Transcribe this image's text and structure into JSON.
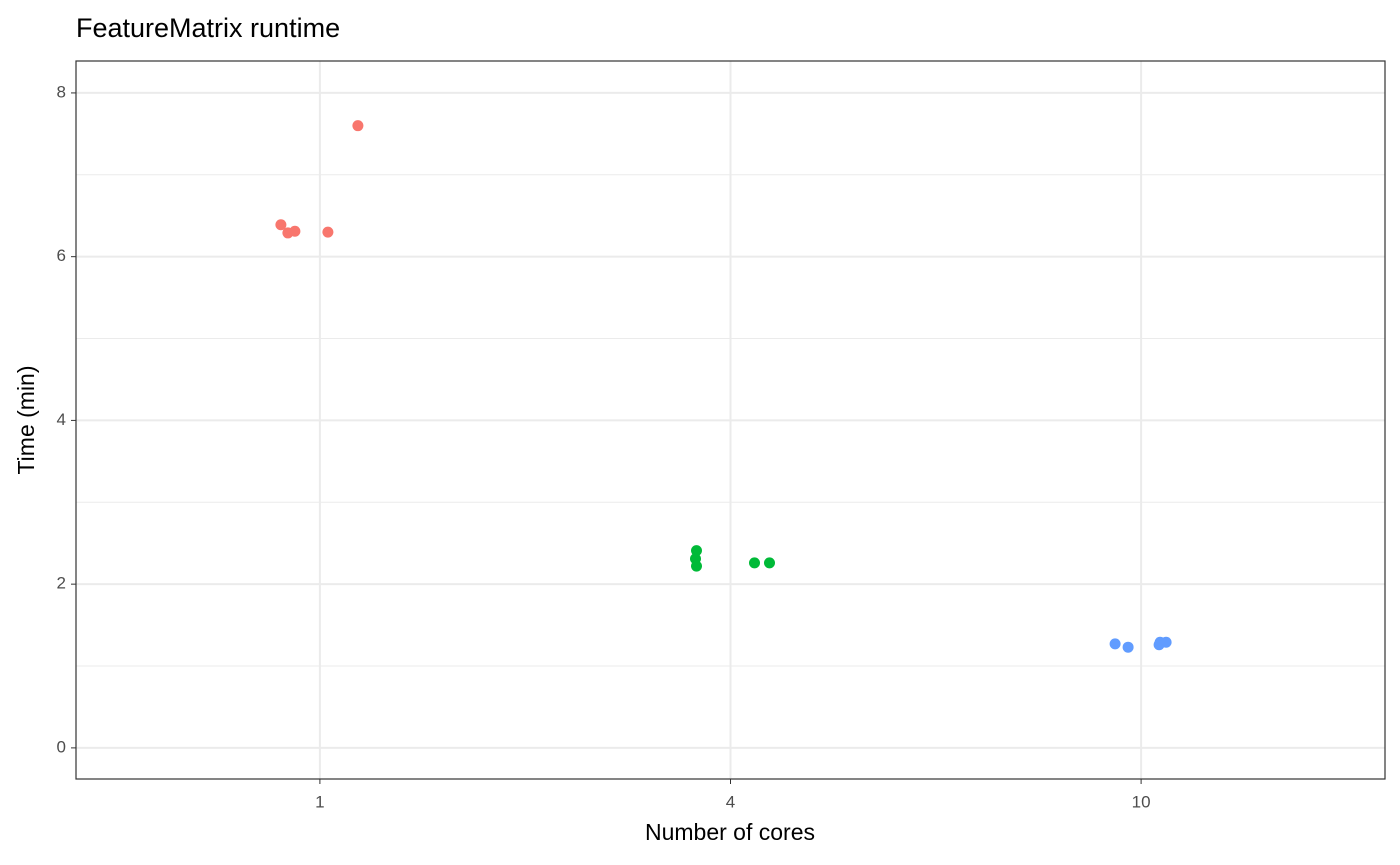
{
  "chart_data": {
    "type": "strip",
    "title": "FeatureMatrix runtime",
    "x_label": "Number of cores",
    "y_label": "Time (min)",
    "categories": [
      "1",
      "4",
      "10"
    ],
    "colors": [
      "#f8766d",
      "#00ba38",
      "#619cff"
    ],
    "values": [
      [
        6.39,
        6.29,
        6.31,
        6.3,
        7.6
      ],
      [
        2.41,
        2.31,
        2.22,
        2.26,
        2.26
      ],
      [
        1.27,
        1.23,
        1.26,
        1.29,
        1.29
      ]
    ],
    "ylim": [
      -0.38,
      8.39
    ],
    "yticks": [
      0,
      2,
      4,
      6,
      8
    ],
    "grid": true
  }
}
